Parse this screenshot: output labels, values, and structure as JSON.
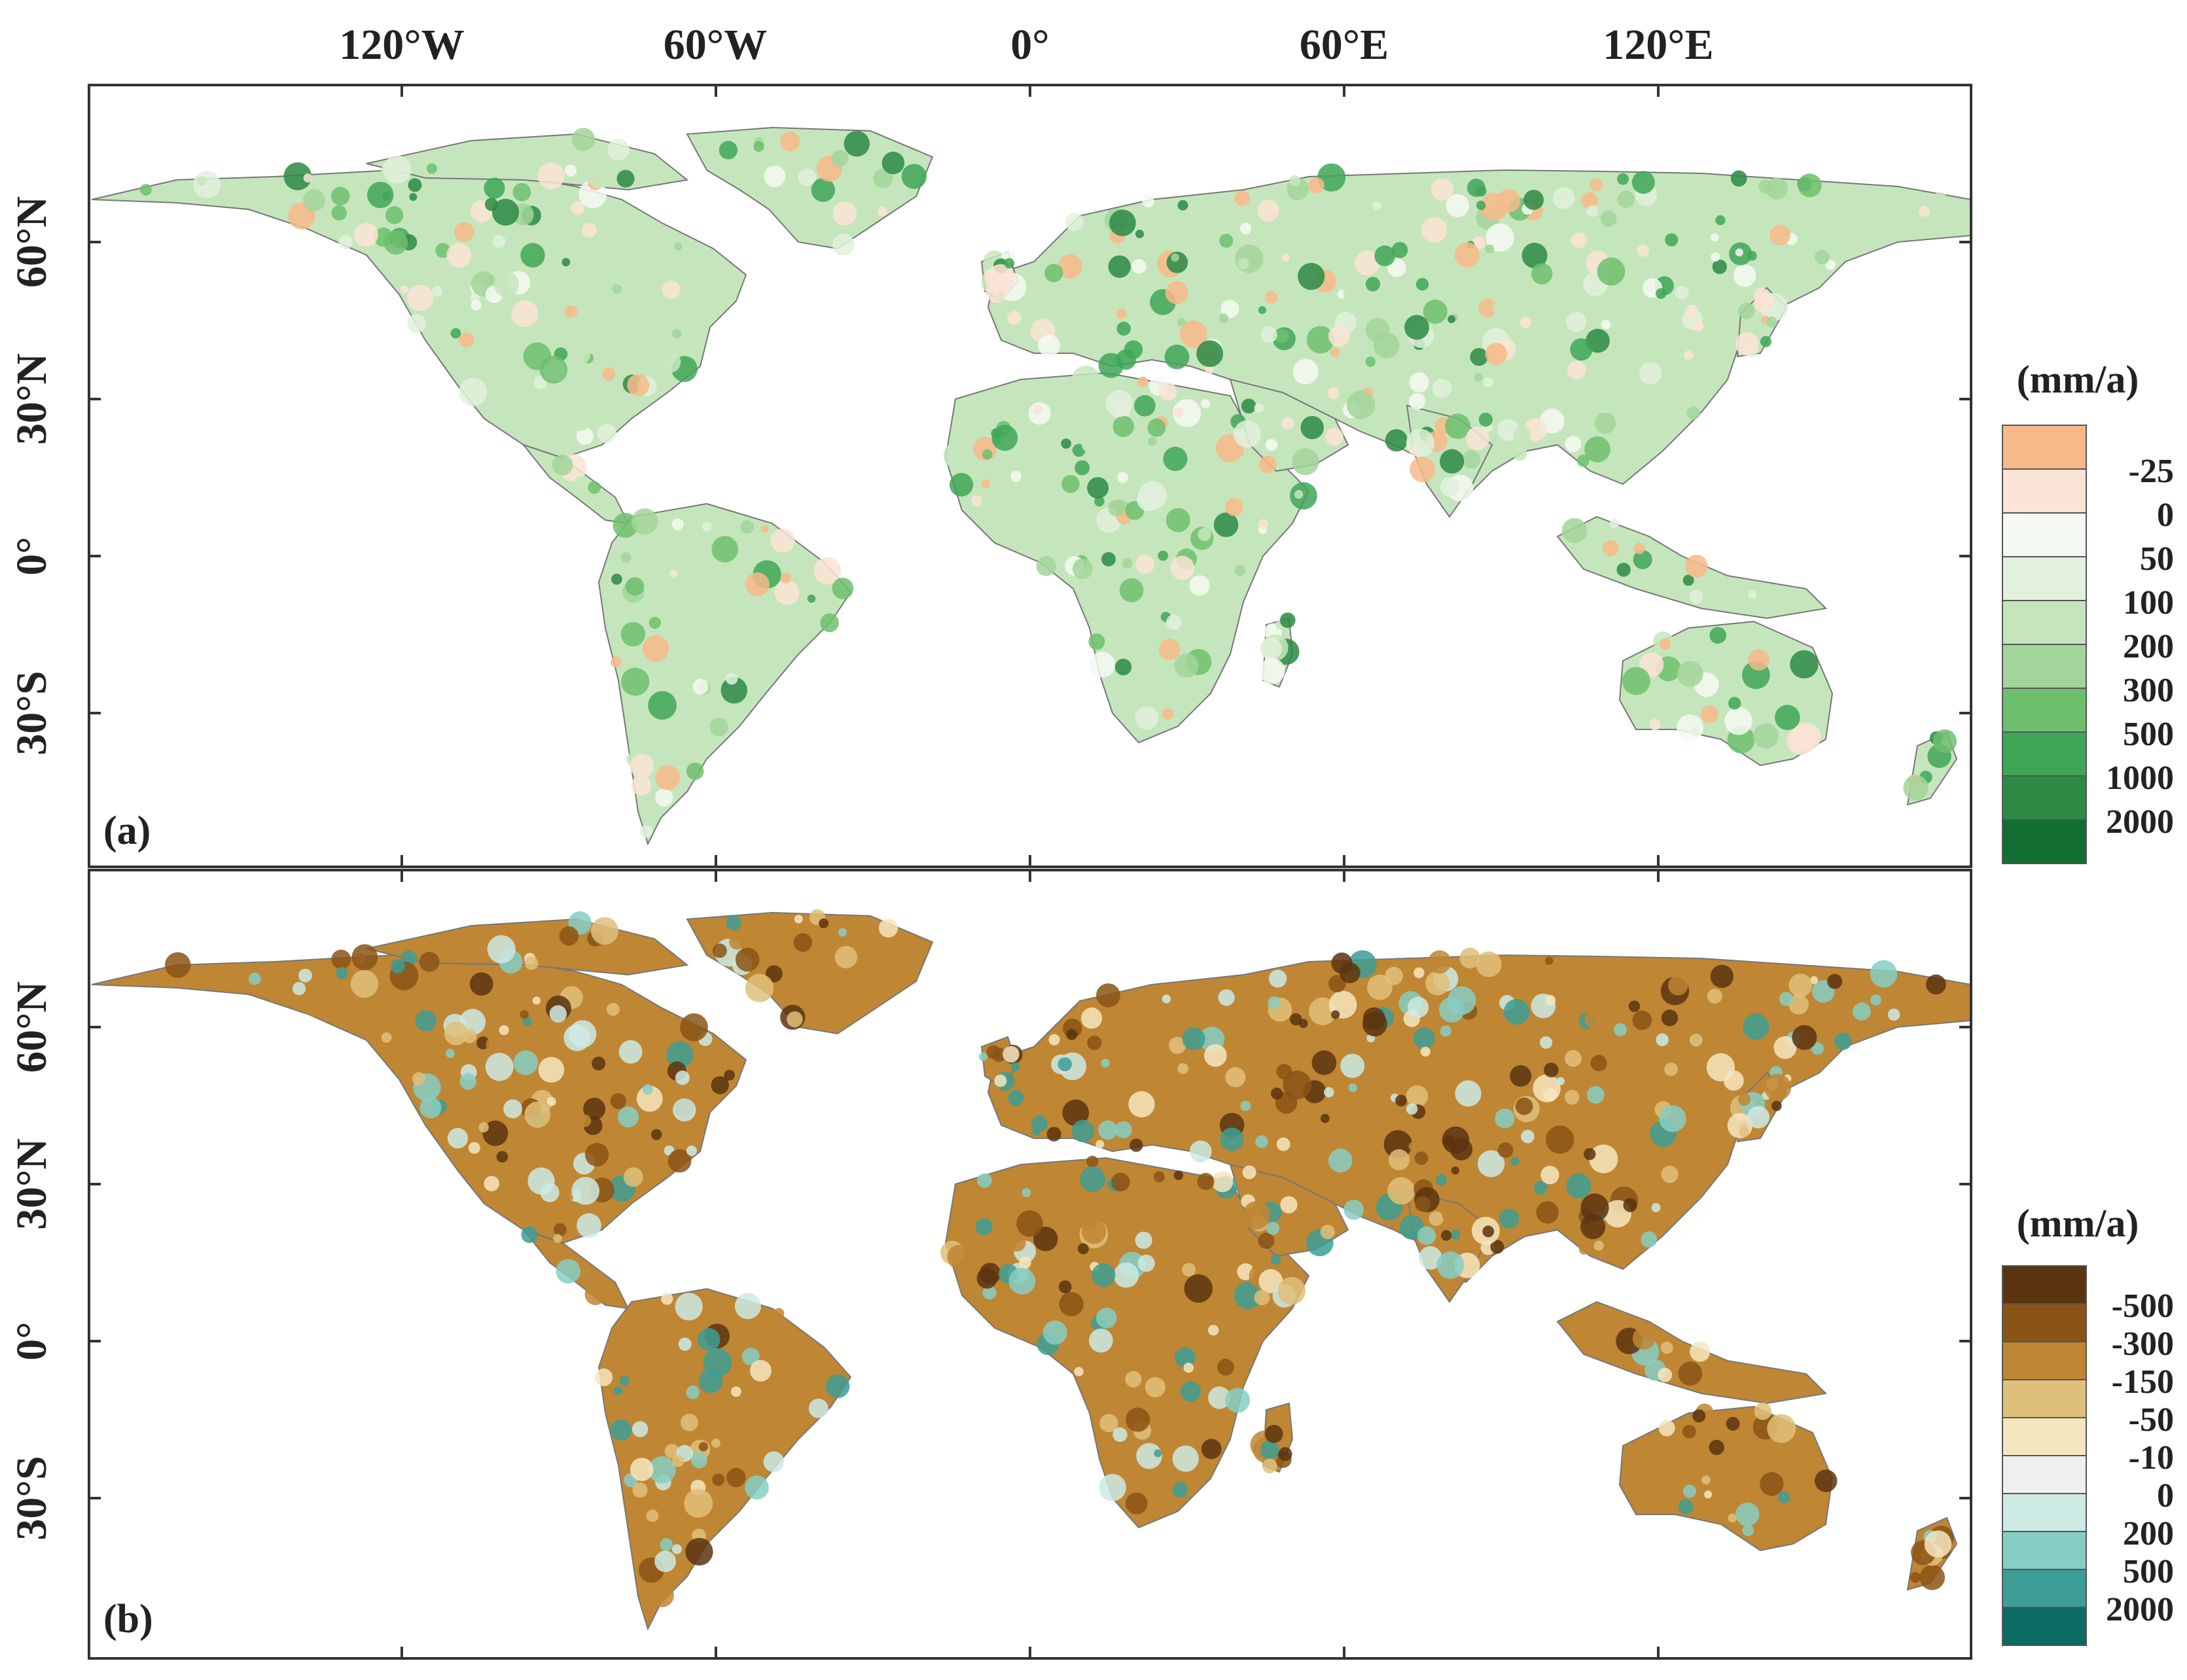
{
  "top_axis": {
    "lon_labels": [
      "120°W",
      "60°W",
      "0°",
      "60°E",
      "120°E"
    ],
    "lon_values": [
      -120,
      -60,
      0,
      60,
      120
    ]
  },
  "lat_axis": {
    "lat_labels": [
      "60°N",
      "30°N",
      "0°",
      "30°S"
    ],
    "lat_values": [
      60,
      30,
      0,
      -30
    ]
  },
  "panels": [
    {
      "id": "a",
      "label": "(a)",
      "legend": {
        "unit": "(mm/a)",
        "labels": [
          "-25",
          "0",
          "50",
          "100",
          "200",
          "300",
          "500",
          "1000",
          "2000"
        ],
        "colors": [
          "#f8b98a",
          "#fbe3d6",
          "#f4f9f2",
          "#e1f1dc",
          "#c5e6bd",
          "#a2d59a",
          "#6dbf6d",
          "#3fa658",
          "#2c8a45",
          "#126e33"
        ]
      },
      "land_palette": [
        "#c5e6bd",
        "#a2d59a",
        "#6dbf6d",
        "#3fa658",
        "#2c8a45",
        "#f8b98a",
        "#fbe3d6",
        "#f4f9f2",
        "#e1f1dc"
      ]
    },
    {
      "id": "b",
      "label": "(b)",
      "legend": {
        "unit": "(mm/a)",
        "labels": [
          "-500",
          "-300",
          "-150",
          "-50",
          "-10",
          "0",
          "200",
          "500",
          "2000"
        ],
        "colors": [
          "#5b3411",
          "#8a5416",
          "#bf8634",
          "#dfc07a",
          "#f6e6c0",
          "#efefef",
          "#cdeae5",
          "#86cec3",
          "#3c9e95",
          "#0c6b62"
        ]
      },
      "land_palette": [
        "#bf8634",
        "#8a5416",
        "#dfc07a",
        "#cdeae5",
        "#86cec3",
        "#3c9e95",
        "#5b3411",
        "#f6e6c0"
      ]
    }
  ]
}
